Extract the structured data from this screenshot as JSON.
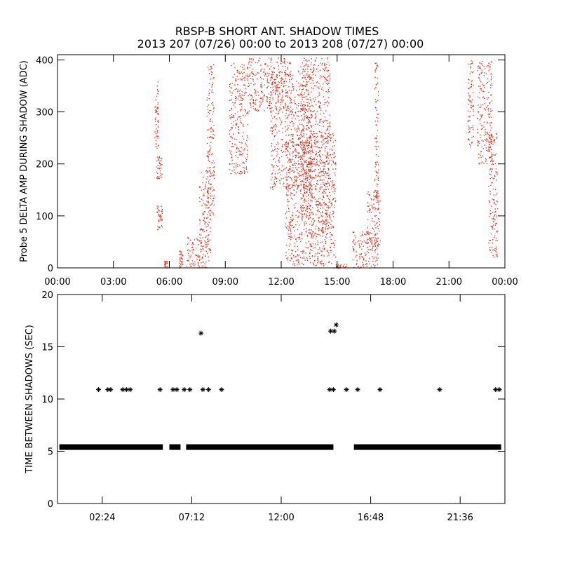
{
  "title": {
    "line1": "RBSP-B SHORT ANT. SHADOW TIMES",
    "line2": "2013 207 (07/26) 00:00 to 2013 208 (07/27) 00:00"
  },
  "colors": {
    "points": "#e8200c",
    "axes": "#000000"
  },
  "chart_data": [
    {
      "type": "scatter",
      "ylabel": "Probe 5 DELTA AMP DURING SHADOW (ADC)",
      "xlabel": "",
      "x_unit": "hours",
      "xlim": [
        0,
        24
      ],
      "ylim": [
        0,
        410
      ],
      "x_ticks": [
        0,
        3,
        6,
        9,
        12,
        15,
        18,
        21,
        24
      ],
      "x_tick_labels": [
        "00:00",
        "03:00",
        "06:00",
        "09:00",
        "12:00",
        "15:00",
        "18:00",
        "21:00",
        "00:00"
      ],
      "y_ticks": [
        0,
        100,
        200,
        300,
        400
      ],
      "y_tick_labels": [
        "0",
        "100",
        "200",
        "300",
        "400"
      ],
      "marker": "dot",
      "series": [
        {
          "clusters": [
            {
              "x": [
                5.3,
                5.6
              ],
              "y": [
                170,
                215
              ]
            },
            {
              "x": [
                5.3,
                5.6
              ],
              "y": [
                70,
                120
              ]
            },
            {
              "x": [
                5.2,
                5.4
              ],
              "y": [
                230,
                360
              ]
            },
            {
              "x": [
                5.7,
                5.9
              ],
              "y": [
                0,
                15
              ]
            },
            {
              "x": [
                6.5,
                6.7
              ],
              "y": [
                0,
                35
              ]
            },
            {
              "x": [
                6.9,
                8.1
              ],
              "y": [
                0,
                60
              ]
            },
            {
              "x": [
                7.6,
                8.2
              ],
              "y": [
                30,
                190
              ]
            },
            {
              "x": [
                8.0,
                8.4
              ],
              "y": [
                100,
                395
              ]
            },
            {
              "x": [
                9.2,
                10.2
              ],
              "y": [
                180,
                395
              ]
            },
            {
              "x": [
                10.2,
                12.6
              ],
              "y": [
                300,
                405
              ]
            },
            {
              "x": [
                11.4,
                13.6
              ],
              "y": [
                150,
                380
              ]
            },
            {
              "x": [
                12.2,
                14.9
              ],
              "y": [
                5,
                260
              ]
            },
            {
              "x": [
                13.0,
                14.6
              ],
              "y": [
                60,
                405
              ]
            },
            {
              "x": [
                14.8,
                15.5
              ],
              "y": [
                0,
                8
              ]
            },
            {
              "x": [
                15.8,
                17.2
              ],
              "y": [
                0,
                70
              ]
            },
            {
              "x": [
                16.6,
                17.3
              ],
              "y": [
                40,
                150
              ]
            },
            {
              "x": [
                17.0,
                17.2
              ],
              "y": [
                100,
                395
              ]
            },
            {
              "x": [
                22.0,
                22.3
              ],
              "y": [
                230,
                400
              ]
            },
            {
              "x": [
                22.5,
                23.3
              ],
              "y": [
                200,
                400
              ]
            },
            {
              "x": [
                23.1,
                23.6
              ],
              "y": [
                20,
                260
              ]
            }
          ]
        }
      ]
    },
    {
      "type": "scatter",
      "ylabel": "TIME BETWEEN SHADOWS (SEC)",
      "xlabel": "",
      "x_unit": "hours",
      "xlim": [
        0,
        24
      ],
      "ylim": [
        0,
        20
      ],
      "x_ticks": [
        2.4,
        7.2,
        12.0,
        16.8,
        21.6
      ],
      "x_tick_labels": [
        "02:24",
        "07:12",
        "12:00",
        "16:48",
        "21:36"
      ],
      "y_ticks": [
        0,
        5,
        10,
        15,
        20
      ],
      "y_tick_labels": [
        "0",
        "5",
        "10",
        "15",
        "20"
      ],
      "marker": "asterisk",
      "series": [
        {
          "baseline_value": 5.4,
          "baseline_segments": [
            [
              0.1,
              5.65
            ],
            [
              6.0,
              6.6
            ],
            [
              6.9,
              14.8
            ],
            [
              15.9,
              23.8
            ]
          ],
          "points": [
            {
              "x": 2.2,
              "y": 10.9
            },
            {
              "x": 2.7,
              "y": 10.9
            },
            {
              "x": 2.85,
              "y": 10.9
            },
            {
              "x": 3.5,
              "y": 10.9
            },
            {
              "x": 3.7,
              "y": 10.9
            },
            {
              "x": 3.9,
              "y": 10.9
            },
            {
              "x": 5.5,
              "y": 10.9
            },
            {
              "x": 6.2,
              "y": 10.9
            },
            {
              "x": 6.4,
              "y": 10.9
            },
            {
              "x": 6.8,
              "y": 10.9
            },
            {
              "x": 7.1,
              "y": 10.9
            },
            {
              "x": 7.7,
              "y": 16.3
            },
            {
              "x": 7.8,
              "y": 10.9
            },
            {
              "x": 8.1,
              "y": 10.9
            },
            {
              "x": 8.8,
              "y": 10.9
            },
            {
              "x": 14.6,
              "y": 10.9
            },
            {
              "x": 14.8,
              "y": 10.9
            },
            {
              "x": 14.65,
              "y": 16.5
            },
            {
              "x": 14.85,
              "y": 16.5
            },
            {
              "x": 14.95,
              "y": 17.1
            },
            {
              "x": 15.5,
              "y": 10.9
            },
            {
              "x": 16.1,
              "y": 10.9
            },
            {
              "x": 17.3,
              "y": 10.9
            },
            {
              "x": 20.5,
              "y": 10.9
            },
            {
              "x": 23.5,
              "y": 10.9
            },
            {
              "x": 23.7,
              "y": 10.9
            }
          ]
        }
      ]
    }
  ]
}
